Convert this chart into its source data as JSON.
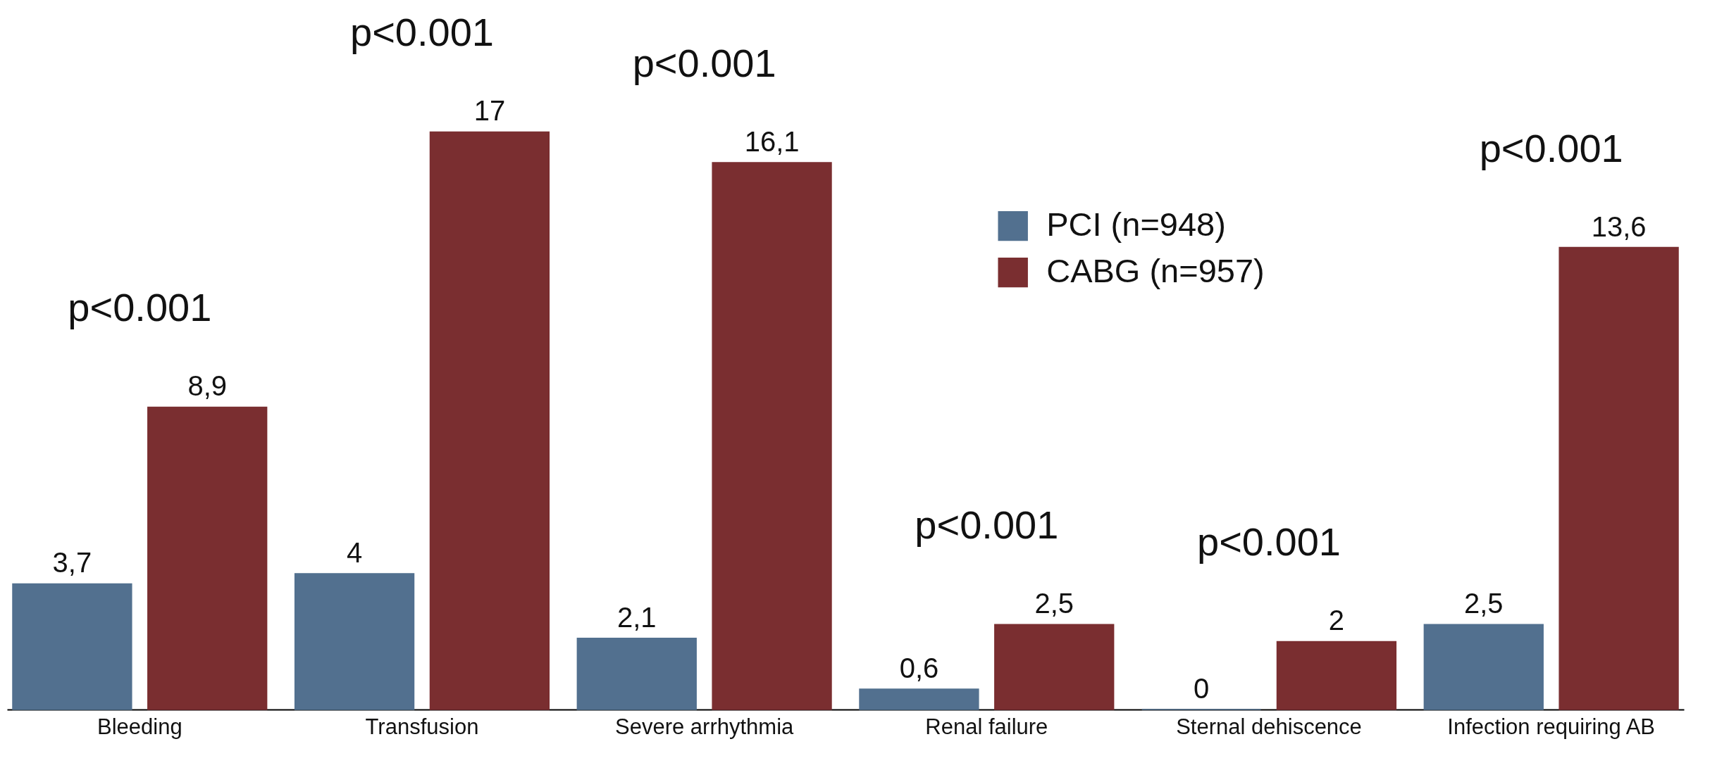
{
  "chart_data": {
    "type": "bar",
    "categories": [
      "Bleeding",
      "Transfusion",
      "Severe arrhythmia",
      "Renal failure",
      "Sternal dehiscence",
      "Infection requiring AB"
    ],
    "series": [
      {
        "name": "PCI (n=948)",
        "color": "#52708f",
        "values": [
          3.7,
          4,
          2.1,
          0.6,
          0,
          2.5
        ],
        "value_labels": [
          "3,7",
          "4",
          "2,1",
          "0,6",
          "0",
          "2,5"
        ]
      },
      {
        "name": "CABG (n=957)",
        "color": "#7a2e30",
        "values": [
          8.9,
          17,
          16.1,
          2.5,
          2,
          13.6
        ],
        "value_labels": [
          "8,9",
          "17",
          "16,1",
          "2,5",
          "2",
          "13,6"
        ]
      }
    ],
    "annotations": [
      "p<0.001",
      "p<0.001",
      "p<0.001",
      "p<0.001",
      "p<0.001",
      "p<0.001"
    ],
    "legend": "top right"
  }
}
